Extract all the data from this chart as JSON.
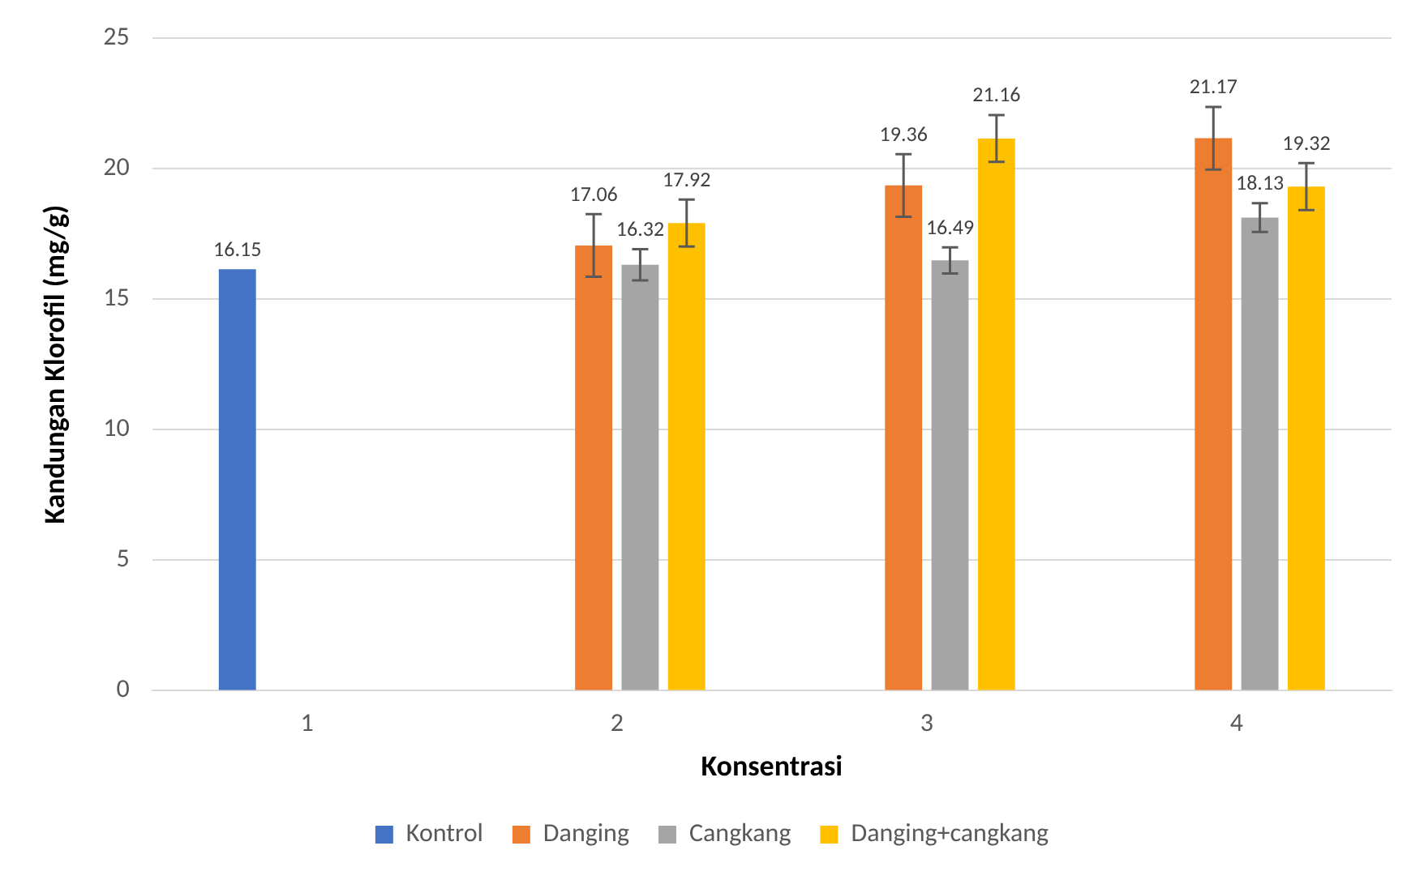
{
  "chart_data": {
    "type": "bar",
    "xlabel": "Konsentrasi",
    "ylabel": "Kandungan Klorofil (mg/g)",
    "categories": [
      "1",
      "2",
      "3",
      "4"
    ],
    "series": [
      {
        "name": "Kontrol",
        "color": "#4472c4",
        "values": [
          16.15,
          null,
          null,
          null
        ]
      },
      {
        "name": "Danging",
        "color": "#ed7d31",
        "values": [
          null,
          17.06,
          19.36,
          21.17
        ],
        "errors": [
          null,
          1.2,
          1.2,
          1.2
        ]
      },
      {
        "name": "Cangkang",
        "color": "#a5a5a5",
        "values": [
          null,
          16.32,
          16.49,
          18.13
        ],
        "errors": [
          null,
          0.6,
          0.5,
          0.55
        ]
      },
      {
        "name": "Danging+cangkang",
        "color": "#ffc000",
        "values": [
          null,
          17.92,
          21.16,
          19.32
        ],
        "errors": [
          null,
          0.9,
          0.9,
          0.9
        ]
      }
    ],
    "ylim": [
      0,
      25
    ],
    "yticks": [
      0,
      5,
      10,
      15,
      20,
      25
    ],
    "grid": "y",
    "legend": "bottom",
    "data_labels": true
  }
}
